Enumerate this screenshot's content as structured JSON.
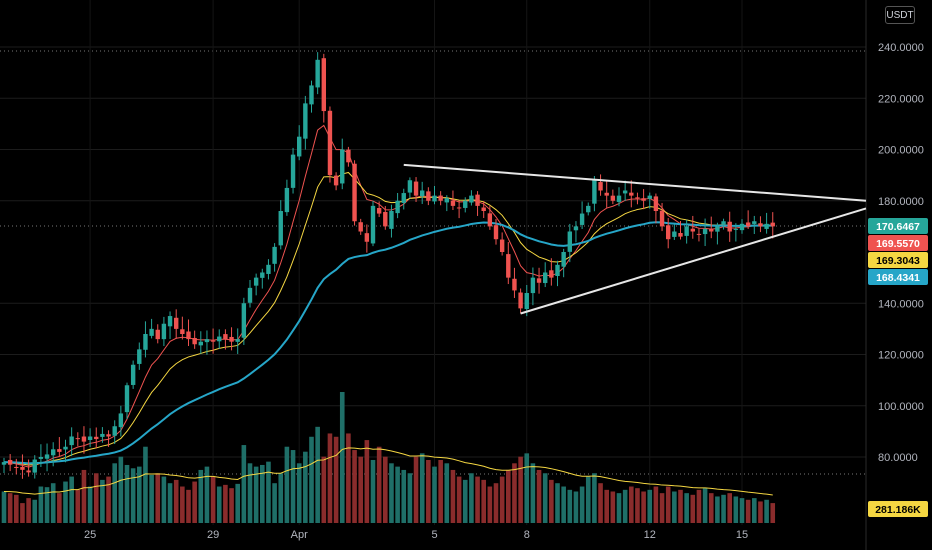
{
  "currency": "USDT",
  "colors": {
    "up": "#26a69a",
    "down": "#ef5350",
    "ma_fast": "#ef5350",
    "ma_mid": "#f5d742",
    "ma_slow": "#26a6c8",
    "volume_ma": "#f5d742",
    "trendline": "#e6e6e6"
  },
  "price_badges": [
    {
      "value": "170.6467",
      "color": "#26a69a",
      "text_color": "#ffffff"
    },
    {
      "value": "169.5570",
      "color": "#ef5350",
      "text_color": "#ffffff"
    },
    {
      "value": "169.3043",
      "color": "#f5d742",
      "text_color": "#000000"
    },
    {
      "value": "168.4341",
      "color": "#26a6c8",
      "text_color": "#ffffff"
    }
  ],
  "volume_badge": {
    "value": "281.186K",
    "color": "#f5d742",
    "text_color": "#000000"
  },
  "chart_data": {
    "type": "candlestick",
    "y_ticks": [
      "240.0000",
      "220.0000",
      "200.0000",
      "180.0000",
      "140.0000",
      "120.0000",
      "100.0000",
      "80.0000"
    ],
    "ylim": [
      68,
      252
    ],
    "x_ticks": [
      {
        "label": "25",
        "bar": 14
      },
      {
        "label": "29",
        "bar": 34
      },
      {
        "label": "Apr",
        "bar": 48
      },
      {
        "label": "5",
        "bar": 70
      },
      {
        "label": "8",
        "bar": 85
      },
      {
        "label": "12",
        "bar": 105
      },
      {
        "label": "15",
        "bar": 120
      }
    ],
    "grid": true,
    "closes": [
      78,
      77,
      76,
      75,
      74,
      79,
      80,
      81,
      83,
      82,
      84,
      88,
      87,
      86,
      88,
      87,
      89,
      88,
      92,
      97,
      108,
      116,
      122,
      128,
      130,
      126,
      132,
      135,
      130,
      128,
      126,
      124,
      125,
      126,
      125,
      127,
      126,
      125,
      126,
      140,
      146,
      150,
      152,
      155,
      162,
      176,
      185,
      198,
      205,
      218,
      225,
      235,
      215,
      190,
      186,
      200,
      195,
      172,
      168,
      164,
      178,
      175,
      170,
      176,
      180,
      183,
      188,
      182,
      184,
      180,
      182,
      180,
      181,
      178,
      177,
      180,
      182,
      178,
      176,
      170,
      165,
      160,
      150,
      145,
      138,
      144,
      150,
      148,
      152,
      150,
      155,
      160,
      168,
      170,
      175,
      178,
      188,
      184,
      182,
      180,
      182,
      184,
      182,
      181,
      180,
      182,
      176,
      170,
      165,
      168,
      166,
      170,
      168,
      167,
      169,
      168,
      170,
      172,
      168,
      169,
      171,
      170,
      172,
      170,
      171,
      170
    ]
  },
  "volume_data": {
    "values": [
      95,
      90,
      85,
      60,
      75,
      70,
      110,
      108,
      120,
      90,
      125,
      140,
      100,
      160,
      110,
      150,
      130,
      140,
      180,
      200,
      175,
      165,
      170,
      230,
      145,
      150,
      140,
      120,
      130,
      110,
      100,
      125,
      160,
      170,
      140,
      110,
      115,
      105,
      118,
      235,
      180,
      170,
      175,
      185,
      120,
      150,
      230,
      220,
      180,
      215,
      260,
      290,
      200,
      270,
      260,
      395,
      270,
      220,
      200,
      250,
      190,
      230,
      200,
      180,
      170,
      160,
      150,
      200,
      210,
      190,
      170,
      190,
      180,
      160,
      140,
      130,
      150,
      140,
      130,
      110,
      120,
      140,
      160,
      180,
      200,
      210,
      180,
      160,
      150,
      130,
      120,
      110,
      100,
      95,
      110,
      140,
      150,
      120,
      100,
      95,
      90,
      100,
      110,
      105,
      95,
      100,
      110,
      90,
      110,
      95,
      100,
      90,
      85,
      100,
      105,
      90,
      80,
      85,
      90,
      80,
      75,
      70,
      75,
      65,
      70,
      60
    ],
    "ma_value": "281.186K"
  }
}
